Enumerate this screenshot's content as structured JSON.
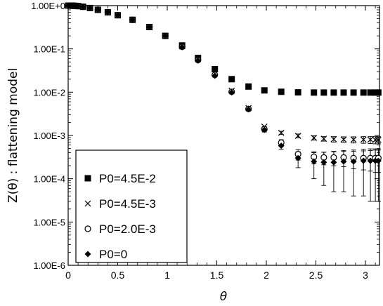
{
  "chart_data": {
    "type": "scatter",
    "title": "",
    "xlabel": "θ",
    "ylabel": "Z(θ) : flattening model",
    "xlim": [
      0,
      3.1416
    ],
    "ylim_log10": [
      -6,
      0
    ],
    "y_scale": "log",
    "x_ticks": [
      "0",
      "0.5",
      "1",
      "1.5",
      "2",
      "2.5",
      "3"
    ],
    "x_tick_values": [
      0,
      0.5,
      1,
      1.5,
      2,
      2.5,
      3
    ],
    "y_ticks": [
      "1.00E-6",
      "1.00E-5",
      "1.00E-4",
      "1.00E-3",
      "1.00E-2",
      "1.00E-1",
      "1.00E+0"
    ],
    "y_tick_values": [
      1e-06,
      1e-05,
      0.0001,
      0.001,
      0.01,
      0.1,
      1
    ],
    "grid": false,
    "legend_position": "bottom-left",
    "x": [
      0.0,
      0.05,
      0.1,
      0.15,
      0.21,
      0.31,
      0.42,
      0.52,
      0.63,
      0.73,
      0.84,
      0.94,
      1.05,
      1.15,
      1.26,
      1.36,
      1.47,
      1.57,
      1.68,
      1.78,
      1.88,
      1.99,
      2.09,
      2.2,
      2.3,
      2.41,
      2.51,
      2.62,
      2.72,
      2.83,
      2.93,
      3.04,
      3.14
    ],
    "series": [
      {
        "name": "P0=4.5E-2",
        "marker": "square",
        "x": [
          0.0,
          0.02,
          0.04,
          0.06,
          0.08,
          0.1,
          0.15,
          0.22,
          0.3,
          0.4,
          0.5,
          0.65,
          0.82,
          0.98,
          1.15,
          1.31,
          1.48,
          1.65,
          1.82,
          1.98,
          2.15,
          2.32,
          2.48,
          2.58,
          2.68,
          2.78,
          2.88,
          2.98,
          3.05,
          3.1,
          3.13
        ],
        "values": [
          1.0,
          0.998,
          0.995,
          0.99,
          0.985,
          0.975,
          0.94,
          0.88,
          0.8,
          0.7,
          0.6,
          0.47,
          0.32,
          0.2,
          0.12,
          0.062,
          0.034,
          0.02,
          0.0135,
          0.011,
          0.0102,
          0.0099,
          0.0098,
          0.0098,
          0.0098,
          0.0098,
          0.0098,
          0.0098,
          0.0098,
          0.0098,
          0.0098
        ]
      },
      {
        "name": "P0=4.5E-3",
        "marker": "cross",
        "x": [
          0.0,
          0.02,
          0.04,
          0.06,
          0.08,
          0.1,
          0.15,
          0.22,
          0.3,
          0.4,
          0.5,
          0.65,
          0.82,
          0.98,
          1.15,
          1.31,
          1.48,
          1.65,
          1.82,
          1.98,
          2.15,
          2.32,
          2.48,
          2.58,
          2.68,
          2.78,
          2.88,
          2.98,
          3.05,
          3.1,
          3.13
        ],
        "values": [
          1.0,
          0.998,
          0.995,
          0.99,
          0.985,
          0.975,
          0.94,
          0.88,
          0.8,
          0.7,
          0.6,
          0.47,
          0.32,
          0.2,
          0.115,
          0.058,
          0.027,
          0.0108,
          0.0043,
          0.0016,
          0.00115,
          0.00098,
          0.00088,
          0.00084,
          0.00082,
          0.00081,
          0.0008,
          0.0008,
          0.0008,
          0.00079,
          0.00079
        ],
        "errors": [
          0,
          0,
          0,
          0,
          0,
          0,
          0,
          0,
          0,
          0,
          0,
          0,
          0,
          0,
          0,
          0,
          0,
          0,
          0,
          0,
          0.0001,
          0.0001,
          0.0001,
          0.0001,
          0.00012,
          0.00012,
          0.00013,
          0.00014,
          0.00015,
          0.00015,
          0.00015
        ]
      },
      {
        "name": "P0=2.0E-3",
        "marker": "circle",
        "x": [
          0.0,
          0.02,
          0.04,
          0.06,
          0.08,
          0.1,
          0.15,
          0.22,
          0.3,
          0.4,
          0.5,
          0.65,
          0.82,
          0.98,
          1.15,
          1.31,
          1.48,
          1.65,
          1.82,
          1.98,
          2.15,
          2.32,
          2.48,
          2.58,
          2.68,
          2.78,
          2.88,
          2.98,
          3.05,
          3.1,
          3.13
        ],
        "values": [
          1.0,
          0.998,
          0.995,
          0.99,
          0.985,
          0.975,
          0.94,
          0.88,
          0.8,
          0.7,
          0.6,
          0.47,
          0.32,
          0.2,
          0.112,
          0.055,
          0.025,
          0.0102,
          0.0041,
          0.0014,
          0.00068,
          0.00037,
          0.00032,
          0.00031,
          0.00031,
          0.00031,
          0.0003,
          0.0003,
          0.0003,
          0.0003,
          0.0003
        ],
        "errors": [
          0,
          0,
          0,
          0,
          0,
          0,
          0,
          0,
          0,
          0,
          0,
          0,
          0,
          0,
          0,
          0,
          0,
          0,
          0,
          0.0002,
          0.00012,
          0.0001,
          0.0001,
          0.0001,
          0.00011,
          0.00012,
          0.00013,
          0.00014,
          0.00015,
          0.00016,
          0.00016
        ]
      },
      {
        "name": "P0=0",
        "marker": "diamond",
        "x": [
          0.0,
          0.02,
          0.04,
          0.06,
          0.08,
          0.1,
          0.15,
          0.22,
          0.3,
          0.4,
          0.5,
          0.65,
          0.82,
          0.98,
          1.15,
          1.31,
          1.48,
          1.65,
          1.82,
          1.98,
          2.15,
          2.32,
          2.48,
          2.58,
          2.68,
          2.78,
          2.88,
          2.98,
          3.05,
          3.1,
          3.13
        ],
        "values": [
          1.0,
          0.998,
          0.995,
          0.99,
          0.985,
          0.975,
          0.94,
          0.88,
          0.8,
          0.7,
          0.6,
          0.47,
          0.32,
          0.2,
          0.11,
          0.054,
          0.024,
          0.0099,
          0.004,
          0.00135,
          0.00058,
          0.0003,
          0.00025,
          0.00024,
          0.00024,
          0.00025,
          0.00025,
          0.00026,
          0.00026,
          0.00026,
          0.00026
        ],
        "errors": [
          0,
          0,
          0,
          0,
          0,
          0,
          0,
          0,
          0,
          0,
          0,
          0,
          0,
          0,
          0,
          0,
          0,
          0,
          0,
          0,
          0.0001,
          0.00012,
          0.00015,
          0.00017,
          0.00019,
          0.0002,
          0.00021,
          0.00022,
          0.00023,
          0.00023,
          0.00023
        ]
      }
    ]
  }
}
